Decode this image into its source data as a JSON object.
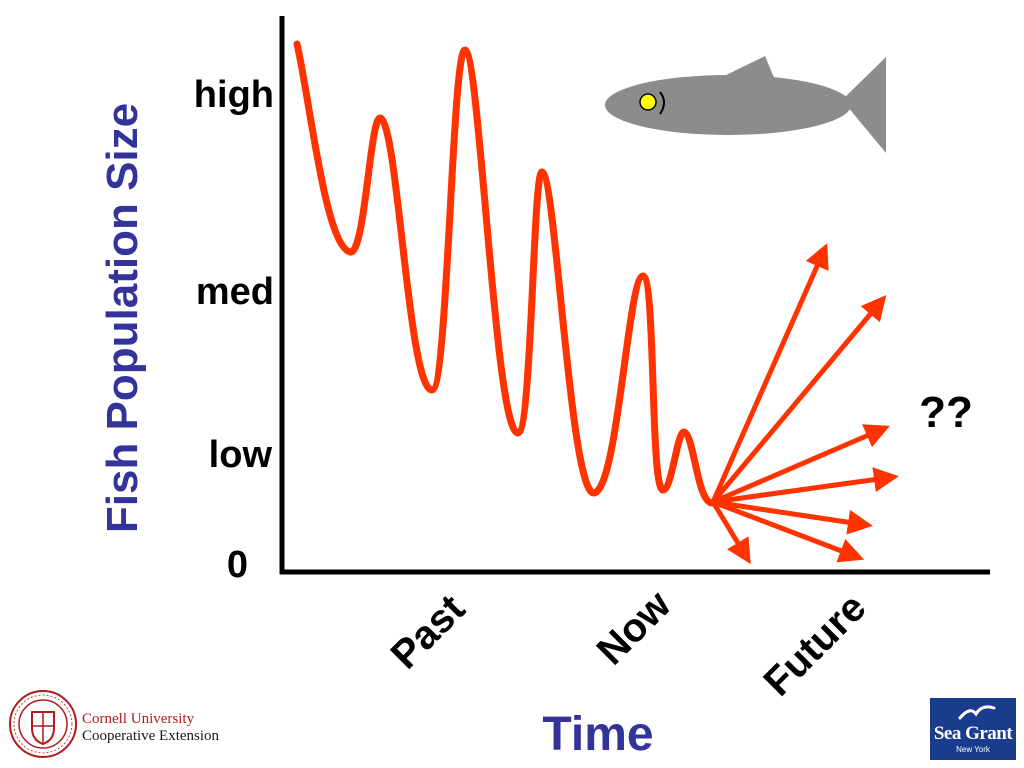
{
  "y_axis": {
    "title": "Fish Population Size",
    "levels": [
      "high",
      "med",
      "low",
      "0"
    ]
  },
  "x_axis": {
    "title": "Time",
    "labels": [
      "Past",
      "Now",
      "Future"
    ]
  },
  "annotation": "??",
  "colors": {
    "curve": "#ff3300",
    "axis": "#000000",
    "title": "#33339a",
    "fish_body": "#8c8c8c",
    "fish_eye": "#ffff00",
    "sea_grant_bg": "#1a3c8c"
  },
  "icons": {
    "fish": "fish-icon",
    "cornell_seal": "cornell-seal-icon",
    "sea_grant_gull": "gull-icon"
  },
  "logos": {
    "cornell": [
      "Cornell University",
      "Cooperative Extension"
    ],
    "sea_grant": {
      "name": "Sea Grant",
      "sub": "New York"
    }
  }
}
